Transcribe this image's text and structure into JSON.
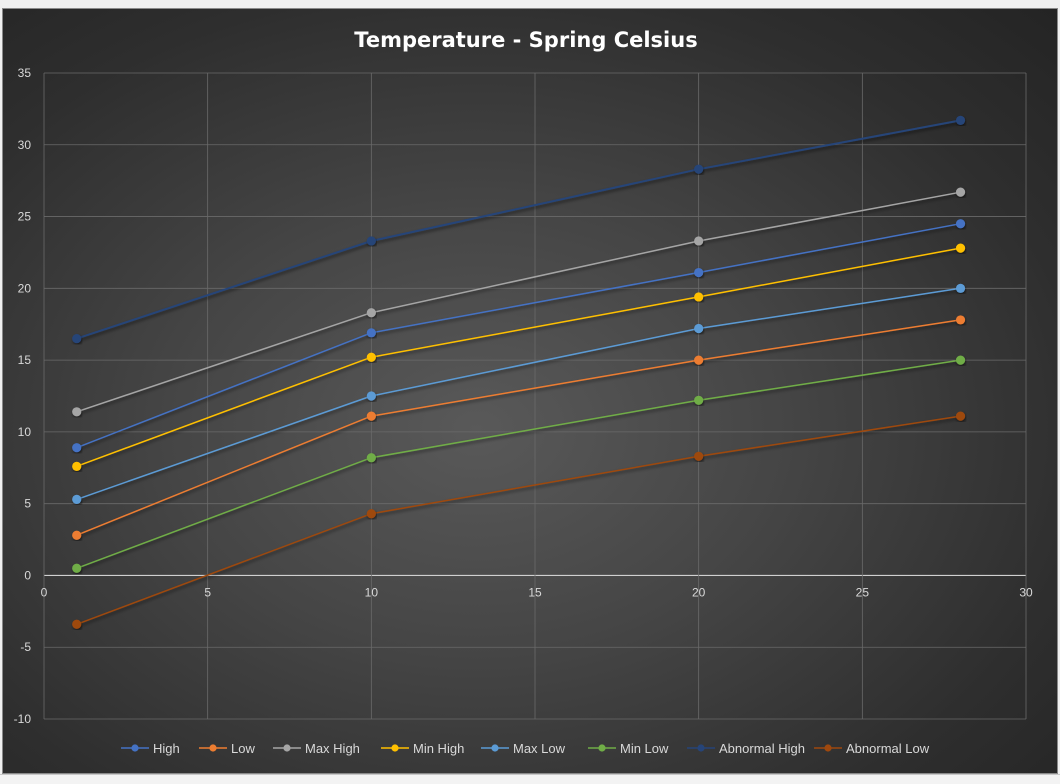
{
  "chart_data": {
    "type": "line",
    "title": "Temperature - Spring Celsius",
    "xlabel": "",
    "ylabel": "",
    "xlim": [
      0,
      30
    ],
    "ylim": [
      -10,
      35
    ],
    "x_ticks": [
      0,
      5,
      10,
      15,
      20,
      25,
      30
    ],
    "y_ticks": [
      -10,
      -5,
      0,
      5,
      10,
      15,
      20,
      25,
      30,
      35
    ],
    "grid": true,
    "legend_position": "bottom",
    "x": [
      1,
      10,
      20,
      28
    ],
    "series": [
      {
        "name": "High",
        "color": "#4472c4",
        "values": [
          8.9,
          16.9,
          21.1,
          24.5
        ]
      },
      {
        "name": "Low",
        "color": "#ed7d31",
        "values": [
          2.8,
          11.1,
          15.0,
          17.8
        ]
      },
      {
        "name": "Max High",
        "color": "#a5a5a5",
        "values": [
          11.4,
          18.3,
          23.3,
          26.7
        ]
      },
      {
        "name": "Min High",
        "color": "#ffc000",
        "values": [
          7.6,
          15.2,
          19.4,
          22.8
        ]
      },
      {
        "name": "Max Low",
        "color": "#5b9bd5",
        "values": [
          5.3,
          12.5,
          17.2,
          20.0
        ]
      },
      {
        "name": "Min Low",
        "color": "#70ad47",
        "values": [
          0.5,
          8.2,
          12.2,
          15.0
        ]
      },
      {
        "name": "Abnormal High",
        "color": "#264478",
        "values": [
          16.5,
          23.3,
          28.3,
          31.7
        ]
      },
      {
        "name": "Abnormal Low",
        "color": "#9e480e",
        "values": [
          -3.4,
          4.3,
          8.3,
          11.1
        ]
      }
    ]
  }
}
